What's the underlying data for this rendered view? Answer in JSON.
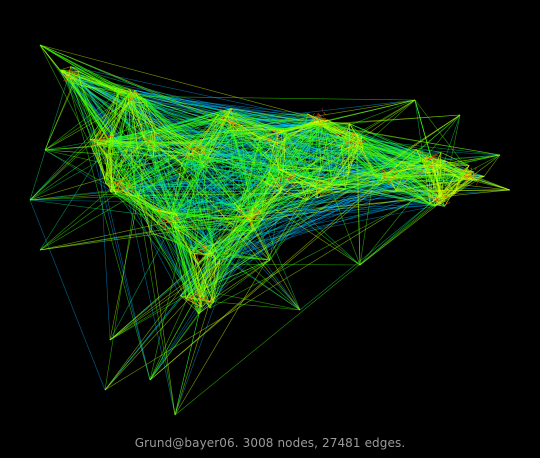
{
  "caption": "Grund@bayer06. 3008 nodes, 27481 edges.",
  "graph": {
    "name": "Grund@bayer06",
    "node_count": 3008,
    "edge_count": 27481
  },
  "colors": {
    "background": "#000000",
    "caption_text": "#9a9a9a",
    "edge_palette": [
      "#00b4ff",
      "#00ff80",
      "#40ff00",
      "#c8ff00",
      "#ffff00",
      "#ffb000",
      "#ff5a00",
      "#ff2a00"
    ]
  }
}
